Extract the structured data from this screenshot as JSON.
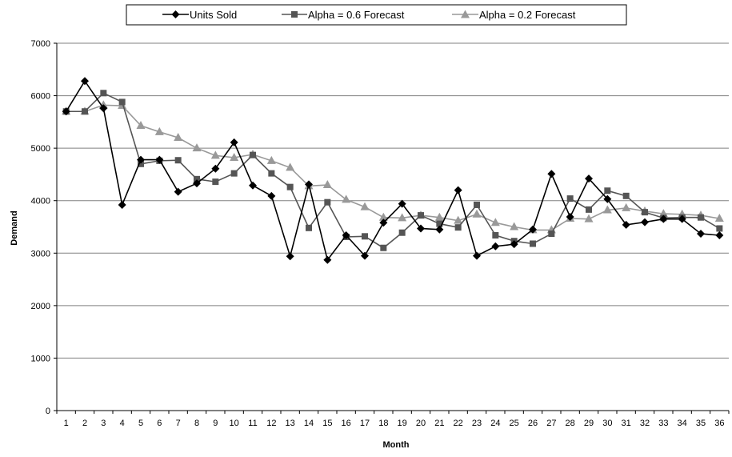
{
  "chart_data": {
    "type": "line",
    "title": "",
    "xlabel": "Month",
    "ylabel": "Demand",
    "ylim": [
      0,
      7000
    ],
    "yticks": [
      0,
      1000,
      2000,
      3000,
      4000,
      5000,
      6000,
      7000
    ],
    "grid": "horizontal",
    "legend_position": "top",
    "x": [
      1,
      2,
      3,
      4,
      5,
      6,
      7,
      8,
      9,
      10,
      11,
      12,
      13,
      14,
      15,
      16,
      17,
      18,
      19,
      20,
      21,
      22,
      23,
      24,
      25,
      26,
      27,
      28,
      29,
      30,
      31,
      32,
      33,
      34,
      35,
      36
    ],
    "series": [
      {
        "name": "Units Sold",
        "color": "#000000",
        "marker": "diamond",
        "values": [
          5700,
          6280,
          5760,
          3920,
          4780,
          4780,
          4170,
          4330,
          4610,
          5110,
          4290,
          4090,
          2940,
          4310,
          2870,
          3340,
          2950,
          3580,
          3940,
          3470,
          3450,
          4200,
          2950,
          3130,
          3170,
          3450,
          4510,
          3690,
          4420,
          4030,
          3540,
          3590,
          3650,
          3650,
          3370,
          3340
        ]
      },
      {
        "name": "Alpha = 0.6 Forecast",
        "color": "#555555",
        "marker": "square",
        "values": [
          5700,
          5700,
          6050,
          5880,
          4700,
          4760,
          4770,
          4410,
          4360,
          4520,
          4870,
          4520,
          4260,
          3480,
          3970,
          3310,
          3320,
          3100,
          3390,
          3720,
          3560,
          3490,
          3920,
          3340,
          3230,
          3180,
          3370,
          4040,
          3830,
          4190,
          4090,
          3780,
          3670,
          3680,
          3680,
          3470
        ]
      },
      {
        "name": "Alpha = 0.2 Forecast",
        "color": "#999999",
        "marker": "triangle",
        "values": [
          5700,
          5700,
          5820,
          5810,
          5430,
          5310,
          5200,
          5000,
          4860,
          4820,
          4880,
          4760,
          4630,
          4280,
          4300,
          4020,
          3880,
          3680,
          3670,
          3720,
          3680,
          3620,
          3740,
          3580,
          3500,
          3440,
          3440,
          3660,
          3650,
          3820,
          3860,
          3800,
          3750,
          3740,
          3720,
          3660
        ]
      }
    ]
  }
}
